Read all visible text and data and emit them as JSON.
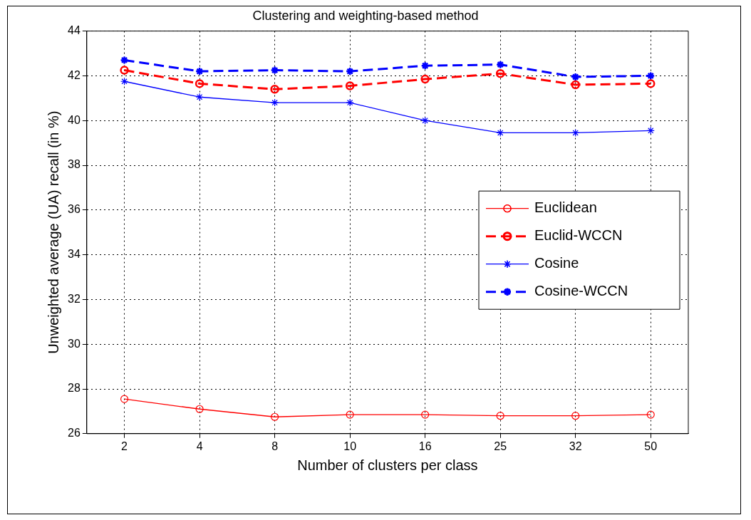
{
  "chart_data": {
    "type": "line",
    "title": "Clustering and weighting-based method",
    "xlabel": "Number of clusters per class",
    "ylabel": "Unweighted average (UA) recall (in %)",
    "categories": [
      "2",
      "4",
      "8",
      "10",
      "16",
      "25",
      "32",
      "50"
    ],
    "ylim": [
      26,
      44
    ],
    "yticks": [
      26,
      28,
      30,
      32,
      34,
      36,
      38,
      40,
      42,
      44
    ],
    "grid": true,
    "legend": "right",
    "series": [
      {
        "name": "Euclidean",
        "color": "#ff0000",
        "marker": "circle",
        "line_style": "solid",
        "values": [
          27.55,
          27.1,
          26.75,
          26.85,
          26.85,
          26.8,
          26.8,
          26.85
        ]
      },
      {
        "name": "Euclid-WCCN",
        "color": "#ff0000",
        "marker": "circle",
        "line_style": "dashed",
        "values": [
          42.25,
          41.65,
          41.4,
          41.55,
          41.85,
          42.1,
          41.6,
          41.65
        ]
      },
      {
        "name": "Cosine",
        "color": "#0000ff",
        "marker": "cross",
        "line_style": "solid",
        "values": [
          41.75,
          41.05,
          40.8,
          40.8,
          40.0,
          39.45,
          39.45,
          39.55
        ]
      },
      {
        "name": "Cosine-WCCN",
        "color": "#0000ff",
        "marker": "cross",
        "line_style": "dashed",
        "values": [
          42.7,
          42.2,
          42.25,
          42.2,
          42.45,
          42.5,
          41.95,
          42.0
        ]
      }
    ]
  }
}
